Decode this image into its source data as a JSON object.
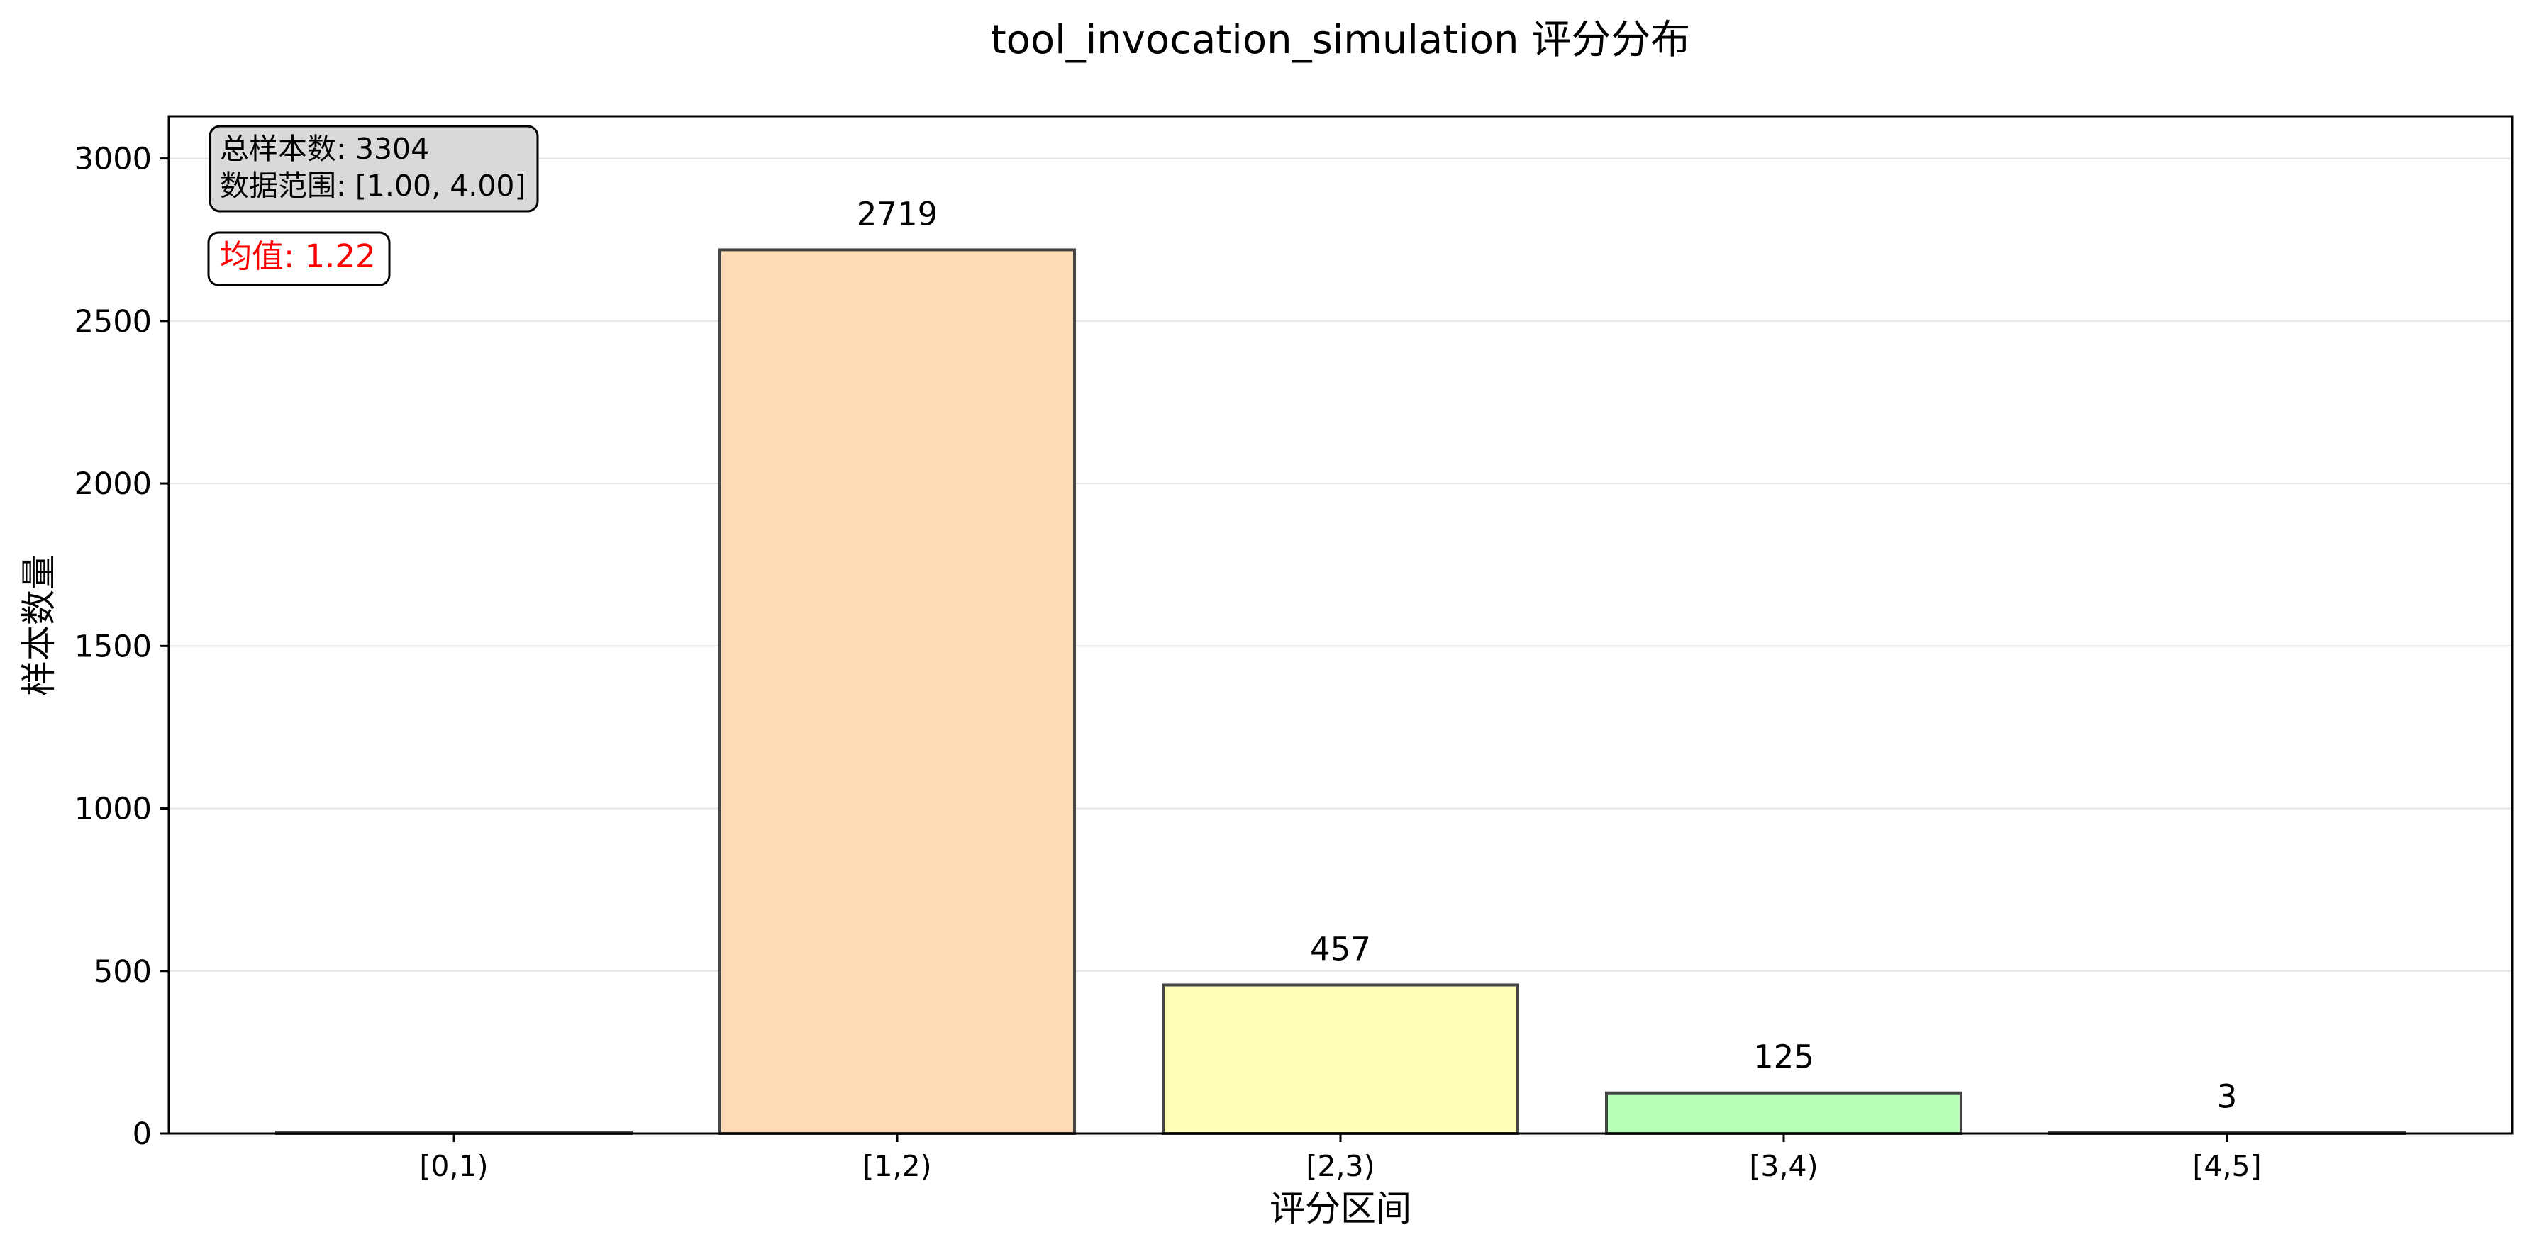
{
  "chart_data": {
    "type": "bar",
    "title": "tool_invocation_simulation 评分分布",
    "xlabel": "评分区间",
    "ylabel": "样本数量",
    "categories": [
      "[0,1)",
      "[1,2)",
      "[2,3)",
      "[3,4)",
      "[4,5]"
    ],
    "values": [
      0,
      2719,
      457,
      125,
      3
    ],
    "data_labels": [
      "",
      "2719",
      "457",
      "125",
      "3"
    ],
    "bar_colors": [
      "#ffffff",
      "#fddbb5",
      "#ffffb7",
      "#b6ffb6",
      "#ffb6b6"
    ],
    "bar_edge_color": "#444444",
    "ylim": [
      0,
      3130
    ],
    "yticks": [
      0,
      500,
      1000,
      1500,
      2000,
      2500,
      3000
    ],
    "grid": "y",
    "annotations": {
      "stats_line1": "总样本数: 3304",
      "stats_line2": "数据范围: [1.00, 4.00]",
      "mean": "均值: 1.22"
    },
    "colors": {
      "mean_text": "#ff0000",
      "stats_box_fill": "#d9d9d9",
      "gridline": "#e5e5e5"
    }
  }
}
